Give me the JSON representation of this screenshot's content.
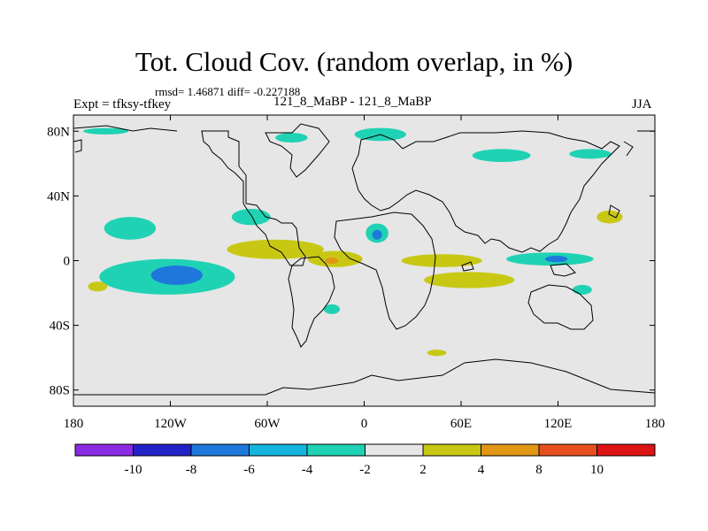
{
  "title": "Tot. Cloud Cov. (random overlap, in %)",
  "stats": "rmsd= 1.46871 diff= -0.227188",
  "expt": "Expt = tfksy-tfkey",
  "case": "121_8_MaBP - 121_8_MaBP",
  "season": "JJA",
  "map": {
    "background": "#e6e6e6",
    "lat_labels": [
      "80N",
      "40N",
      "0",
      "40S",
      "80S"
    ],
    "lat_values": [
      80,
      40,
      0,
      -40,
      -80
    ],
    "lon_labels": [
      "180",
      "120W",
      "60W",
      "0",
      "60E",
      "120E",
      "180"
    ],
    "lon_values": [
      -180,
      -120,
      -60,
      0,
      60,
      120,
      180
    ],
    "lon_range": [
      -180,
      180
    ],
    "lat_range": [
      -90,
      90
    ]
  },
  "colorbar": {
    "colors": [
      "#8a2be2",
      "#2323c8",
      "#1e78dc",
      "#14b4dc",
      "#20d2b4",
      "#e6e6e6",
      "#c8c814",
      "#e19614",
      "#e6501e",
      "#dc1414"
    ],
    "labels": [
      "-10",
      "-8",
      "-6",
      "-4",
      "-2",
      "2",
      "4",
      "8",
      "10"
    ]
  },
  "anomalies": [
    {
      "name": "cloud-anomaly-east-pacific-south",
      "lon": -122,
      "lat": -10,
      "rx": 42,
      "ry": 11,
      "color": "#20d2b4"
    },
    {
      "name": "cloud-anomaly-east-pacific-core",
      "lon": -116,
      "lat": -9,
      "rx": 16,
      "ry": 6,
      "color": "#1e78dc"
    },
    {
      "name": "cloud-anomaly-north-pacific",
      "lon": -145,
      "lat": 20,
      "rx": 16,
      "ry": 7,
      "color": "#20d2b4"
    },
    {
      "name": "cloud-anomaly-central-america-north",
      "lon": -70,
      "lat": 27,
      "rx": 12,
      "ry": 5,
      "color": "#20d2b4"
    },
    {
      "name": "cloud-anomaly-itcz-atlantic",
      "lon": -55,
      "lat": 7,
      "rx": 30,
      "ry": 6,
      "color": "#c8c814"
    },
    {
      "name": "cloud-anomaly-tropical-atlantic",
      "lon": -18,
      "lat": 1,
      "rx": 17,
      "ry": 5,
      "color": "#c8c814"
    },
    {
      "name": "cloud-anomaly-atlantic-positive-core",
      "lon": -20,
      "lat": 0,
      "rx": 4,
      "ry": 2,
      "color": "#e19614"
    },
    {
      "name": "cloud-anomaly-north-africa",
      "lon": 8,
      "lat": 17,
      "rx": 7,
      "ry": 6,
      "color": "#20d2b4"
    },
    {
      "name": "cloud-anomaly-north-africa-core",
      "lon": 8,
      "lat": 16,
      "rx": 3,
      "ry": 3,
      "color": "#1e78dc"
    },
    {
      "name": "cloud-anomaly-africa-tropics",
      "lon": 48,
      "lat": 0,
      "rx": 25,
      "ry": 4,
      "color": "#c8c814"
    },
    {
      "name": "cloud-anomaly-indian-ocean",
      "lon": 65,
      "lat": -12,
      "rx": 28,
      "ry": 5,
      "color": "#c8c814"
    },
    {
      "name": "cloud-anomaly-west-pacific",
      "lon": 115,
      "lat": 1,
      "rx": 27,
      "ry": 4,
      "color": "#20d2b4"
    },
    {
      "name": "cloud-anomaly-west-pacific-core",
      "lon": 119,
      "lat": 1,
      "rx": 7,
      "ry": 2,
      "color": "#1e78dc"
    },
    {
      "name": "cloud-anomaly-pacific-ne",
      "lon": 152,
      "lat": 27,
      "rx": 8,
      "ry": 4,
      "color": "#c8c814"
    },
    {
      "name": "cloud-anomaly-south-pacific-west",
      "lon": -165,
      "lat": -16,
      "rx": 6,
      "ry": 3,
      "color": "#c8c814"
    },
    {
      "name": "cloud-anomaly-south-atlantic",
      "lon": -20,
      "lat": -30,
      "rx": 5,
      "ry": 3,
      "color": "#20d2b4"
    },
    {
      "name": "cloud-anomaly-arctic-siberia",
      "lon": 85,
      "lat": 65,
      "rx": 18,
      "ry": 4,
      "color": "#20d2b4"
    },
    {
      "name": "cloud-anomaly-arctic-east",
      "lon": 140,
      "lat": 66,
      "rx": 13,
      "ry": 3,
      "color": "#20d2b4"
    },
    {
      "name": "cloud-anomaly-arctic-europe",
      "lon": 10,
      "lat": 78,
      "rx": 16,
      "ry": 4,
      "color": "#20d2b4"
    },
    {
      "name": "cloud-anomaly-arctic-greenland",
      "lon": -45,
      "lat": 76,
      "rx": 10,
      "ry": 3,
      "color": "#20d2b4"
    },
    {
      "name": "cloud-anomaly-arctic-alaska",
      "lon": -160,
      "lat": 80,
      "rx": 14,
      "ry": 2,
      "color": "#20d2b4"
    },
    {
      "name": "cloud-anomaly-southern-ocean",
      "lon": 45,
      "lat": -57,
      "rx": 6,
      "ry": 2,
      "color": "#c8c814"
    },
    {
      "name": "cloud-anomaly-south-pacific-east",
      "lon": 135,
      "lat": -18,
      "rx": 6,
      "ry": 3,
      "color": "#20d2b4"
    }
  ]
}
